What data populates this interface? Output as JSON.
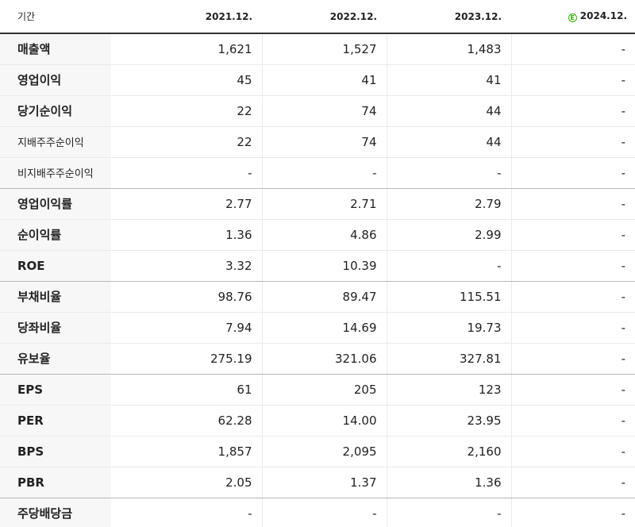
{
  "header": {
    "label": "기간",
    "years": [
      "2021.12.",
      "2022.12.",
      "2023.12.",
      "2024.12."
    ],
    "estimate_icon": "E"
  },
  "rows": [
    {
      "label": "매출액",
      "values": [
        "1,621",
        "1,527",
        "1,483",
        "-"
      ]
    },
    {
      "label": "영업이익",
      "values": [
        "45",
        "41",
        "41",
        "-"
      ]
    },
    {
      "label": "당기순이익",
      "values": [
        "22",
        "74",
        "44",
        "-"
      ]
    },
    {
      "label": "지배주주순이익",
      "values": [
        "22",
        "74",
        "44",
        "-"
      ]
    },
    {
      "label": "비지배주주순이익",
      "values": [
        "-",
        "-",
        "-",
        "-"
      ]
    },
    {
      "label": "영업이익률",
      "values": [
        "2.77",
        "2.71",
        "2.79",
        "-"
      ]
    },
    {
      "label": "순이익률",
      "values": [
        "1.36",
        "4.86",
        "2.99",
        "-"
      ]
    },
    {
      "label": "ROE",
      "values": [
        "3.32",
        "10.39",
        "-",
        "-"
      ]
    },
    {
      "label": "부채비율",
      "values": [
        "98.76",
        "89.47",
        "115.51",
        "-"
      ]
    },
    {
      "label": "당좌비율",
      "values": [
        "7.94",
        "14.69",
        "19.73",
        "-"
      ]
    },
    {
      "label": "유보율",
      "values": [
        "275.19",
        "321.06",
        "327.81",
        "-"
      ]
    },
    {
      "label": "EPS",
      "values": [
        "61",
        "205",
        "123",
        "-"
      ]
    },
    {
      "label": "PER",
      "values": [
        "62.28",
        "14.00",
        "23.95",
        "-"
      ]
    },
    {
      "label": "BPS",
      "values": [
        "1,857",
        "2,095",
        "2,160",
        "-"
      ]
    },
    {
      "label": "PBR",
      "values": [
        "2.05",
        "1.37",
        "1.36",
        "-"
      ]
    },
    {
      "label": "주당배당금",
      "values": [
        "-",
        "-",
        "-",
        "-"
      ]
    }
  ],
  "colors": {
    "estimate_accent": "#2db400",
    "header_rule": "#333333",
    "label_bg": "#f7f7f7"
  }
}
